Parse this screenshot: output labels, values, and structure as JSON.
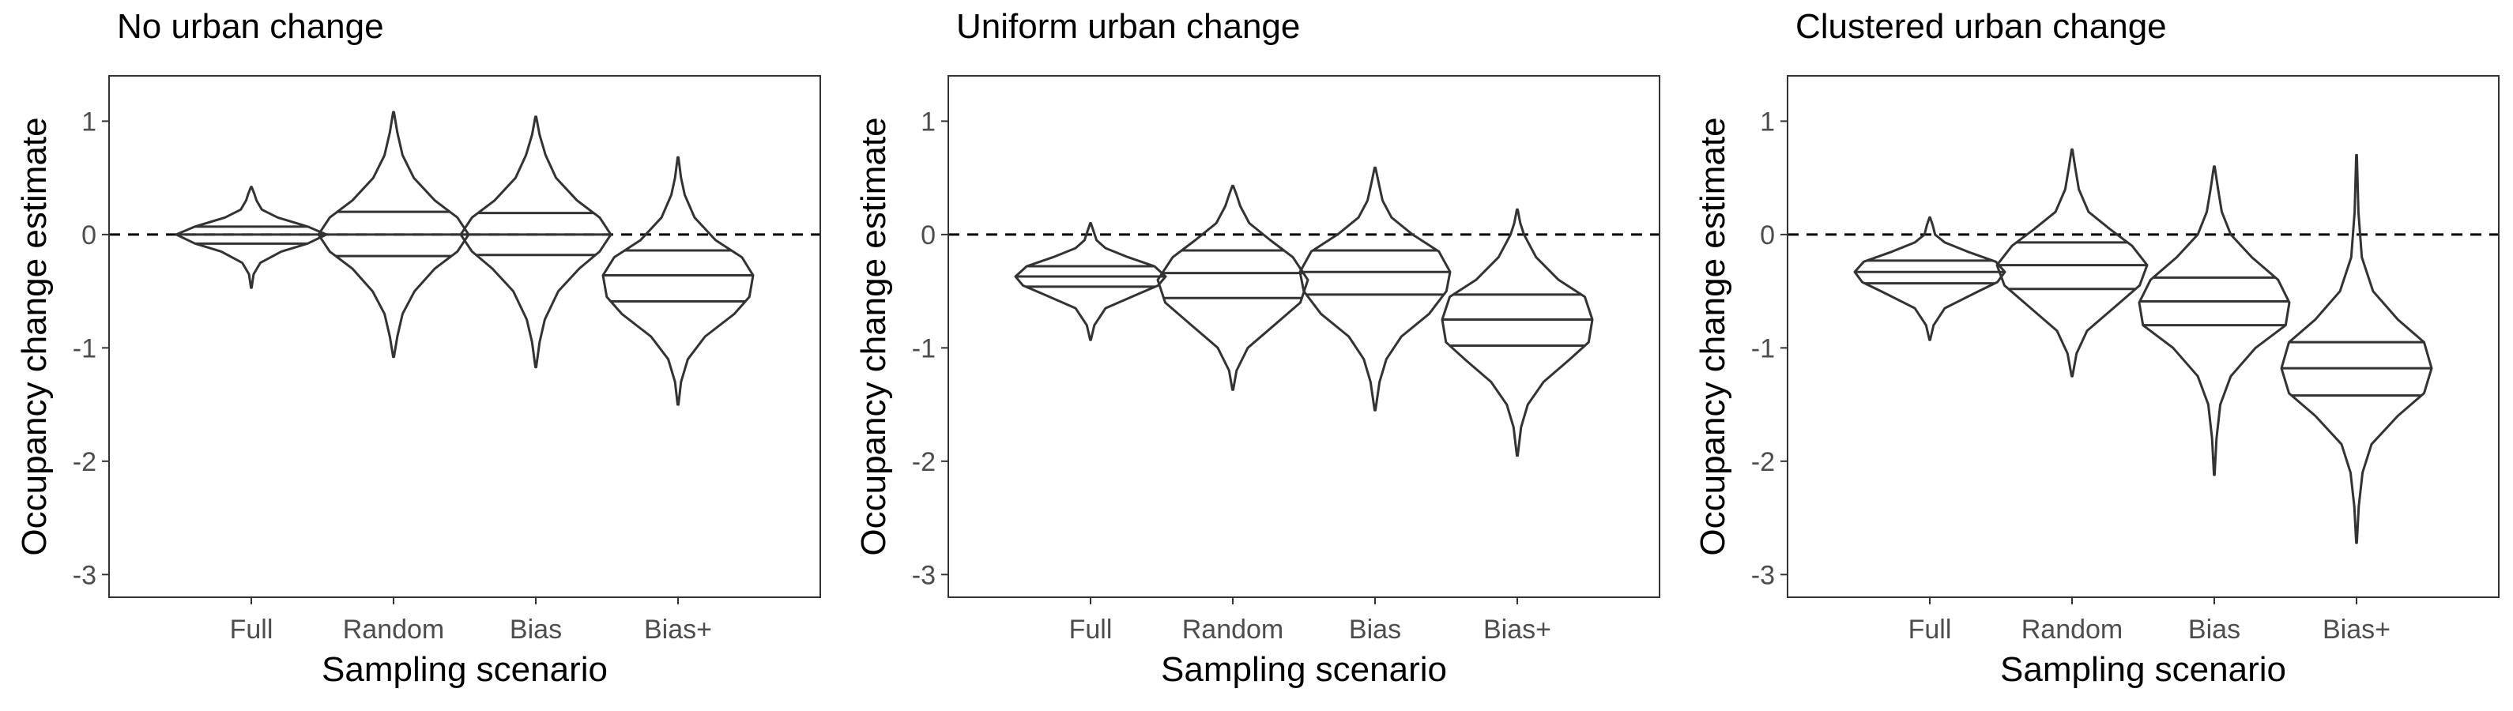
{
  "chart_data": [
    {
      "type": "violin",
      "title": "No urban change",
      "xlabel": "Sampling scenario",
      "ylabel": "Occupancy change estimate",
      "ylim": [
        -3.2,
        1.4
      ],
      "yticks": [
        1,
        0,
        -1,
        -2,
        -3
      ],
      "grid": false,
      "reference_line": {
        "y": 0,
        "style": "dashed"
      },
      "categories": [
        "Full",
        "Random",
        "Bias",
        "Bias+"
      ],
      "series": [
        {
          "category": "Full",
          "min": -0.47,
          "max": 0.42,
          "quantiles": [
            -0.08,
            0.0,
            0.07
          ],
          "density": [
            [
              -0.47,
              0.004
            ],
            [
              -0.35,
              0.03
            ],
            [
              -0.25,
              0.12
            ],
            [
              -0.15,
              0.4
            ],
            [
              -0.08,
              0.75
            ],
            [
              0.0,
              1.0
            ],
            [
              0.07,
              0.75
            ],
            [
              0.15,
              0.35
            ],
            [
              0.22,
              0.14
            ],
            [
              0.3,
              0.07
            ],
            [
              0.36,
              0.04
            ],
            [
              0.42,
              0.004
            ]
          ]
        },
        {
          "category": "Random",
          "min": -1.08,
          "max": 1.08,
          "quantiles": [
            -0.19,
            0.0,
            0.2
          ],
          "density": [
            [
              -1.08,
              0.005
            ],
            [
              -0.9,
              0.05
            ],
            [
              -0.7,
              0.12
            ],
            [
              -0.5,
              0.28
            ],
            [
              -0.3,
              0.55
            ],
            [
              -0.15,
              0.85
            ],
            [
              0.0,
              1.0
            ],
            [
              0.15,
              0.85
            ],
            [
              0.3,
              0.55
            ],
            [
              0.5,
              0.27
            ],
            [
              0.7,
              0.12
            ],
            [
              0.9,
              0.05
            ],
            [
              1.08,
              0.005
            ]
          ]
        },
        {
          "category": "Bias",
          "min": -1.17,
          "max": 1.04,
          "quantiles": [
            -0.18,
            0.0,
            0.19
          ],
          "density": [
            [
              -1.17,
              0.005
            ],
            [
              -0.95,
              0.05
            ],
            [
              -0.75,
              0.12
            ],
            [
              -0.5,
              0.3
            ],
            [
              -0.3,
              0.58
            ],
            [
              -0.15,
              0.85
            ],
            [
              0.0,
              1.0
            ],
            [
              0.15,
              0.85
            ],
            [
              0.3,
              0.55
            ],
            [
              0.5,
              0.27
            ],
            [
              0.7,
              0.13
            ],
            [
              0.88,
              0.05
            ],
            [
              1.04,
              0.005
            ]
          ]
        },
        {
          "category": "Bias+",
          "min": -1.5,
          "max": 0.68,
          "quantiles": [
            -0.59,
            -0.36,
            -0.14
          ],
          "density": [
            [
              -1.5,
              0.005
            ],
            [
              -1.3,
              0.04
            ],
            [
              -1.1,
              0.13
            ],
            [
              -0.9,
              0.36
            ],
            [
              -0.7,
              0.75
            ],
            [
              -0.55,
              0.95
            ],
            [
              -0.36,
              1.0
            ],
            [
              -0.2,
              0.85
            ],
            [
              -0.05,
              0.5
            ],
            [
              0.15,
              0.22
            ],
            [
              0.35,
              0.09
            ],
            [
              0.5,
              0.04
            ],
            [
              0.68,
              0.005
            ]
          ]
        }
      ]
    },
    {
      "type": "violin",
      "title": "Uniform urban change",
      "xlabel": "Sampling scenario",
      "ylabel": "Occupancy change estimate",
      "ylim": [
        -3.2,
        1.4
      ],
      "yticks": [
        1,
        0,
        -1,
        -2,
        -3
      ],
      "grid": false,
      "reference_line": {
        "y": 0,
        "style": "dashed"
      },
      "categories": [
        "Full",
        "Random",
        "Bias",
        "Bias+"
      ],
      "series": [
        {
          "category": "Full",
          "min": -0.93,
          "max": 0.1,
          "quantiles": [
            -0.46,
            -0.37,
            -0.28
          ],
          "density": [
            [
              -0.93,
              0.004
            ],
            [
              -0.8,
              0.05
            ],
            [
              -0.65,
              0.2
            ],
            [
              -0.52,
              0.65
            ],
            [
              -0.45,
              0.9
            ],
            [
              -0.37,
              1.0
            ],
            [
              -0.28,
              0.85
            ],
            [
              -0.2,
              0.5
            ],
            [
              -0.12,
              0.2
            ],
            [
              -0.05,
              0.08
            ],
            [
              0.03,
              0.04
            ],
            [
              0.1,
              0.004
            ]
          ]
        },
        {
          "category": "Random",
          "min": -1.37,
          "max": 0.43,
          "quantiles": [
            -0.56,
            -0.34,
            -0.14
          ],
          "density": [
            [
              -1.37,
              0.005
            ],
            [
              -1.2,
              0.05
            ],
            [
              -1.0,
              0.2
            ],
            [
              -0.8,
              0.55
            ],
            [
              -0.6,
              0.9
            ],
            [
              -0.4,
              1.0
            ],
            [
              -0.2,
              0.8
            ],
            [
              -0.05,
              0.5
            ],
            [
              0.1,
              0.22
            ],
            [
              0.25,
              0.1
            ],
            [
              0.35,
              0.05
            ],
            [
              0.43,
              0.005
            ]
          ]
        },
        {
          "category": "Bias",
          "min": -1.55,
          "max": 0.59,
          "quantiles": [
            -0.53,
            -0.33,
            -0.14
          ],
          "density": [
            [
              -1.55,
              0.005
            ],
            [
              -1.3,
              0.06
            ],
            [
              -1.1,
              0.15
            ],
            [
              -0.9,
              0.35
            ],
            [
              -0.7,
              0.72
            ],
            [
              -0.5,
              0.95
            ],
            [
              -0.33,
              1.0
            ],
            [
              -0.15,
              0.85
            ],
            [
              0.0,
              0.5
            ],
            [
              0.15,
              0.22
            ],
            [
              0.3,
              0.1
            ],
            [
              0.45,
              0.05
            ],
            [
              0.59,
              0.005
            ]
          ]
        },
        {
          "category": "Bias+",
          "min": -1.95,
          "max": 0.22,
          "quantiles": [
            -0.98,
            -0.75,
            -0.53
          ],
          "density": [
            [
              -1.95,
              0.005
            ],
            [
              -1.7,
              0.05
            ],
            [
              -1.5,
              0.14
            ],
            [
              -1.3,
              0.35
            ],
            [
              -1.1,
              0.7
            ],
            [
              -0.95,
              0.95
            ],
            [
              -0.75,
              1.0
            ],
            [
              -0.55,
              0.9
            ],
            [
              -0.4,
              0.55
            ],
            [
              -0.2,
              0.25
            ],
            [
              0.0,
              0.09
            ],
            [
              0.1,
              0.04
            ],
            [
              0.22,
              0.005
            ]
          ]
        }
      ]
    },
    {
      "type": "violin",
      "title": "Clustered urban change",
      "xlabel": "Sampling scenario",
      "ylabel": "Occupancy change estimate",
      "ylim": [
        -3.2,
        1.4
      ],
      "yticks": [
        1,
        0,
        -1,
        -2,
        -3
      ],
      "grid": false,
      "reference_line": {
        "y": 0,
        "style": "dashed"
      },
      "categories": [
        "Full",
        "Random",
        "Bias",
        "Bias+"
      ],
      "series": [
        {
          "category": "Full",
          "min": -0.93,
          "max": 0.15,
          "quantiles": [
            -0.43,
            -0.33,
            -0.23
          ],
          "density": [
            [
              -0.93,
              0.004
            ],
            [
              -0.8,
              0.05
            ],
            [
              -0.65,
              0.2
            ],
            [
              -0.5,
              0.65
            ],
            [
              -0.42,
              0.9
            ],
            [
              -0.33,
              1.0
            ],
            [
              -0.24,
              0.88
            ],
            [
              -0.15,
              0.5
            ],
            [
              -0.07,
              0.2
            ],
            [
              0.0,
              0.07
            ],
            [
              0.08,
              0.04
            ],
            [
              0.15,
              0.004
            ]
          ]
        },
        {
          "category": "Random",
          "min": -1.25,
          "max": 0.75,
          "quantiles": [
            -0.48,
            -0.27,
            -0.07
          ],
          "density": [
            [
              -1.25,
              0.005
            ],
            [
              -1.05,
              0.06
            ],
            [
              -0.85,
              0.2
            ],
            [
              -0.65,
              0.55
            ],
            [
              -0.45,
              0.9
            ],
            [
              -0.27,
              1.0
            ],
            [
              -0.1,
              0.8
            ],
            [
              0.05,
              0.5
            ],
            [
              0.2,
              0.22
            ],
            [
              0.4,
              0.09
            ],
            [
              0.6,
              0.04
            ],
            [
              0.75,
              0.005
            ]
          ]
        },
        {
          "category": "Bias",
          "min": -2.12,
          "max": 0.6,
          "quantiles": [
            -0.8,
            -0.59,
            -0.38
          ],
          "density": [
            [
              -2.12,
              0.004
            ],
            [
              -1.8,
              0.03
            ],
            [
              -1.5,
              0.08
            ],
            [
              -1.25,
              0.22
            ],
            [
              -1.0,
              0.55
            ],
            [
              -0.8,
              0.95
            ],
            [
              -0.6,
              1.0
            ],
            [
              -0.4,
              0.85
            ],
            [
              -0.2,
              0.5
            ],
            [
              0.0,
              0.22
            ],
            [
              0.2,
              0.1
            ],
            [
              0.4,
              0.05
            ],
            [
              0.6,
              0.005
            ]
          ]
        },
        {
          "category": "Bias+",
          "min": -2.72,
          "max": 0.7,
          "quantiles": [
            -1.42,
            -1.18,
            -0.95
          ],
          "density": [
            [
              -2.72,
              0.004
            ],
            [
              -2.4,
              0.03
            ],
            [
              -2.1,
              0.08
            ],
            [
              -1.85,
              0.2
            ],
            [
              -1.6,
              0.55
            ],
            [
              -1.4,
              0.9
            ],
            [
              -1.18,
              1.0
            ],
            [
              -0.95,
              0.9
            ],
            [
              -0.75,
              0.55
            ],
            [
              -0.5,
              0.22
            ],
            [
              -0.2,
              0.07
            ],
            [
              0.2,
              0.025
            ],
            [
              0.7,
              0.004
            ]
          ]
        }
      ]
    }
  ]
}
